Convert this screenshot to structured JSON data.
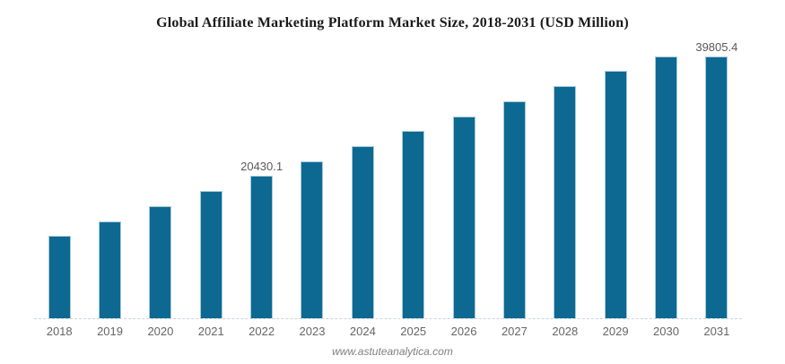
{
  "footer": "www.astuteanalytica.com",
  "colors": {
    "bar_fill": "#0d6991",
    "bar_border": "#a6cbdb",
    "axis_line": "#c8d5dc",
    "title_text": "#1a1a1a",
    "tick_text": "#666666",
    "data_label_text": "#595959",
    "footer_text": "#808080"
  },
  "chart_data": {
    "type": "bar",
    "title": "Global Affiliate Marketing Platform Market Size, 2018-2031 (USD Million)",
    "xlabel": "",
    "ylabel": "USD Million",
    "categories": [
      "2018",
      "2019",
      "2020",
      "2021",
      "2022",
      "2023",
      "2024",
      "2025",
      "2026",
      "2027",
      "2028",
      "2029",
      "2030",
      "2031"
    ],
    "values": [
      11818.9,
      13971.7,
      16124.5,
      18277.3,
      20430.1,
      22582.9,
      24735.7,
      26888.5,
      29041.3,
      31194.2,
      33347.0,
      35499.8,
      37652.6,
      39805.4
    ],
    "visible_data_labels": [
      "",
      "",
      "",
      "",
      "20430.1",
      "",
      "",
      "",
      "",
      "",
      "",
      "",
      "",
      "39805.4"
    ],
    "ylim": [
      0,
      39805.4
    ],
    "grid": false,
    "legend": "none",
    "y_axis_shown": false
  }
}
